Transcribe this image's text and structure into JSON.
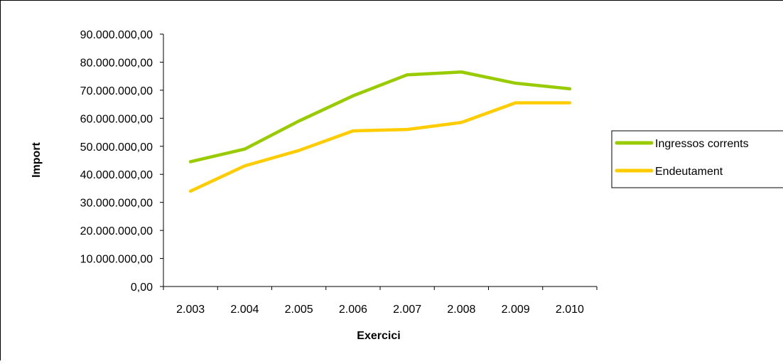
{
  "chart_data": {
    "type": "line",
    "title": "",
    "xlabel": "Exercici",
    "ylabel": "Import",
    "categories": [
      "2.003",
      "2.004",
      "2.005",
      "2.006",
      "2.007",
      "2.008",
      "2.009",
      "2.010"
    ],
    "yticks": [
      "0,00",
      "10.000.000,00",
      "20.000.000,00",
      "30.000.000,00",
      "40.000.000,00",
      "50.000.000,00",
      "60.000.000,00",
      "70.000.000,00",
      "80.000.000,00",
      "90.000.000,00"
    ],
    "ylim": [
      0,
      90000000
    ],
    "grid": false,
    "legend_position": "right",
    "series": [
      {
        "name": "Ingressos corrents",
        "color": "#99cc00",
        "values": [
          44500000,
          49000000,
          59000000,
          68000000,
          75500000,
          76500000,
          72500000,
          70500000
        ]
      },
      {
        "name": "Endeutament",
        "color": "#ffcc00",
        "values": [
          34000000,
          43000000,
          48500000,
          55500000,
          56000000,
          58500000,
          65500000,
          65500000
        ]
      }
    ]
  }
}
